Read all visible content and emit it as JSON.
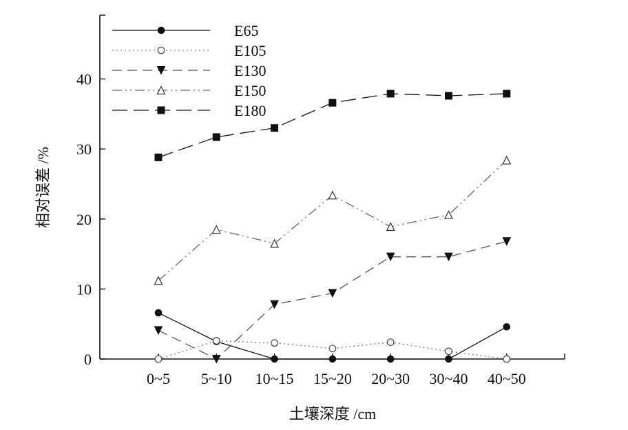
{
  "chart_data": {
    "type": "line",
    "xlabel": "土壤深度 /cm",
    "ylabel": "相对误差 /%",
    "categories": [
      "0~5",
      "5~10",
      "10~15",
      "15~20",
      "20~30",
      "30~40",
      "40~50"
    ],
    "ylim": [
      0,
      50
    ],
    "yticks": [
      0,
      10,
      20,
      30,
      40
    ],
    "grid": false,
    "legend_position": "top-left",
    "series": [
      {
        "name": "E65",
        "marker": "filled-circle",
        "line": "solid",
        "color": "#111111",
        "values": [
          6.6,
          2.5,
          0,
          0,
          0,
          0,
          4.6
        ]
      },
      {
        "name": "E105",
        "marker": "open-circle",
        "line": "dotted",
        "color": "#777777",
        "values": [
          0,
          2.6,
          2.3,
          1.5,
          2.4,
          1.1,
          0
        ]
      },
      {
        "name": "E130",
        "marker": "filled-triangle-down",
        "line": "dashed",
        "color": "#555555",
        "values": [
          4.1,
          0,
          7.8,
          9.4,
          14.6,
          14.6,
          16.8
        ]
      },
      {
        "name": "E150",
        "marker": "open-triangle-up",
        "line": "dash-dot-dot",
        "color": "#666666",
        "values": [
          11.2,
          18.5,
          16.5,
          23.4,
          18.9,
          20.6,
          28.4
        ]
      },
      {
        "name": "E180",
        "marker": "filled-square",
        "line": "long-dash",
        "color": "#111111",
        "values": [
          28.8,
          31.7,
          33.0,
          36.6,
          37.9,
          37.6,
          37.9
        ]
      }
    ]
  }
}
